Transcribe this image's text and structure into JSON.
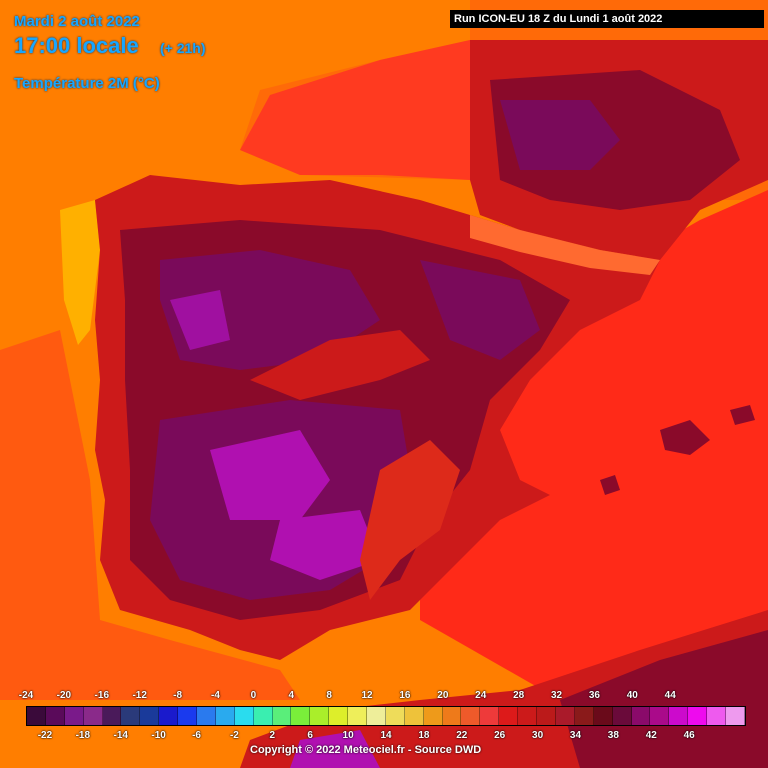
{
  "header": {
    "date": "Mardi 2 août 2022",
    "time": "17:00 locale",
    "offset": "(+ 21h)",
    "parameter": "Température 2M (°C)",
    "run": "Run ICON-EU 18 Z du Lundi 1 août 2022"
  },
  "legend": {
    "ticks_top": [
      "-24",
      "-20",
      "-16",
      "-12",
      "-8",
      "-4",
      "0",
      "4",
      "8",
      "12",
      "16",
      "20",
      "24",
      "28",
      "32",
      "36",
      "40",
      "44"
    ],
    "ticks_bottom": [
      "-22",
      "-18",
      "-14",
      "-10",
      "-6",
      "-2",
      "2",
      "6",
      "10",
      "14",
      "18",
      "22",
      "26",
      "30",
      "34",
      "38",
      "42",
      "46"
    ],
    "colors": [
      "#3a0a3a",
      "#5a0a5a",
      "#7a1a8a",
      "#8a2a8a",
      "#4a1a5a",
      "#2a3a7a",
      "#1a3a9a",
      "#1a1acc",
      "#1a3aee",
      "#2a7aee",
      "#2aaaee",
      "#2adcee",
      "#3aeeb0",
      "#5aee7a",
      "#7aee3a",
      "#aaee2a",
      "#ddee2a",
      "#eeee5a",
      "#eeee9a",
      "#eedc5a",
      "#eec23a",
      "#ee9a1a",
      "#ee7a1a",
      "#ee5a2a",
      "#ee3a3a",
      "#dd1a1a",
      "#cc1a1a",
      "#bb1a1a",
      "#aa1a2a",
      "#8a1a1a",
      "#6a0a1a",
      "#6a0a3a",
      "#8a0a6a",
      "#aa0a8a",
      "#cc0acc",
      "#ee0aee",
      "#ee5aee",
      "#ee9aee"
    ]
  },
  "copyright": "Copyright © 2022 Meteociel.fr - Source DWD",
  "map": {
    "region": "Iberian Peninsula",
    "colors": {
      "sea_atlantic": "#ff7a00",
      "sea_coastal": "#ff4a10",
      "sea_warm": "#ff2a1a",
      "land_hot": "#cc1a1a",
      "land_very_hot": "#8a0a2a",
      "land_extreme": "#7a0a5a",
      "land_peak": "#b010b0",
      "cool_coast": "#ffb400"
    }
  }
}
